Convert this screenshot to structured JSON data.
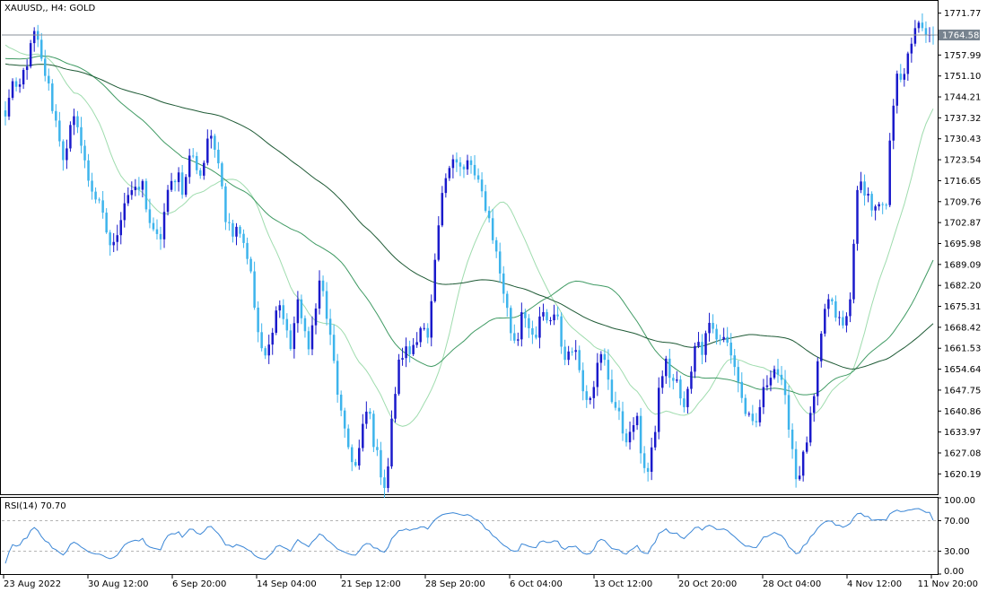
{
  "header": {
    "label": "XAUUSD,, H4:  GOLD"
  },
  "rsi_header": {
    "label": "RSI(14) 70.70"
  },
  "colors": {
    "bull": "#1a1acb",
    "bear": "#3db4ec",
    "ma_fast": "#9fdcae",
    "ma_mid": "#3f9a63",
    "ma_slow": "#1e5a35",
    "rsi": "#3a86d6",
    "frame": "#000000",
    "price_label_bg": "#77838f"
  },
  "chart_data": [
    {
      "type": "candlestick",
      "title": "XAUUSD,, H4:  GOLD",
      "ylim": [
        1613.5,
        1775.5
      ],
      "yticks": [
        1771.77,
        1764.88,
        1757.99,
        1751.1,
        1744.21,
        1737.32,
        1730.43,
        1723.54,
        1716.65,
        1709.76,
        1702.87,
        1695.98,
        1689.09,
        1682.2,
        1675.31,
        1668.42,
        1661.53,
        1654.64,
        1647.75,
        1640.86,
        1633.97,
        1627.08,
        1620.19
      ],
      "current_price": 1764.58,
      "xticks": [
        "23 Aug 2022",
        "30 Aug 12:00",
        "6 Sep 20:00",
        "14 Sep 04:00",
        "21 Sep 12:00",
        "28 Sep 20:00",
        "6 Oct 04:00",
        "13 Oct 12:00",
        "20 Oct 20:00",
        "28 Oct 04:00",
        "4 Nov 12:00",
        "11 Nov 20:00"
      ],
      "price_path": [
        1737,
        1750,
        1744,
        1752,
        1758,
        1766,
        1756,
        1750,
        1740,
        1732,
        1722,
        1734,
        1738,
        1725,
        1717,
        1712,
        1707,
        1700,
        1693,
        1702,
        1710,
        1714,
        1712,
        1716,
        1705,
        1698,
        1697,
        1710,
        1716,
        1720,
        1712,
        1726,
        1722,
        1718,
        1731,
        1728,
        1724,
        1705,
        1700,
        1703,
        1697,
        1690,
        1673,
        1660,
        1658,
        1670,
        1677,
        1669,
        1662,
        1676,
        1672,
        1659,
        1675,
        1685,
        1672,
        1660,
        1645,
        1633,
        1627,
        1622,
        1634,
        1643,
        1630,
        1622,
        1615,
        1638,
        1655,
        1661,
        1660,
        1665,
        1670,
        1663,
        1683,
        1705,
        1718,
        1726,
        1722,
        1719,
        1724,
        1717,
        1713,
        1707,
        1698,
        1688,
        1678,
        1667,
        1663,
        1677,
        1668,
        1661,
        1674,
        1669,
        1673,
        1672,
        1655,
        1664,
        1660,
        1650,
        1645,
        1651,
        1659,
        1656,
        1645,
        1640,
        1633,
        1632,
        1640,
        1626,
        1620,
        1630,
        1650,
        1657,
        1651,
        1650,
        1640,
        1650,
        1665,
        1660,
        1671,
        1668,
        1663,
        1665,
        1660,
        1653,
        1643,
        1638,
        1634,
        1644,
        1650,
        1656,
        1653,
        1645,
        1634,
        1618,
        1624,
        1634,
        1645,
        1662,
        1678,
        1675,
        1671,
        1668,
        1676,
        1710,
        1716,
        1712,
        1706,
        1708,
        1705,
        1737,
        1755,
        1748,
        1760,
        1768,
        1766,
        1763,
        1764.58
      ]
    },
    {
      "type": "line",
      "title": "RSI(14) 70.70",
      "ylim": [
        0,
        100
      ],
      "yticks": [
        100.0,
        70.0,
        30.0,
        0.0
      ],
      "levels": [
        70,
        30
      ],
      "current_value": 70.7
    }
  ]
}
